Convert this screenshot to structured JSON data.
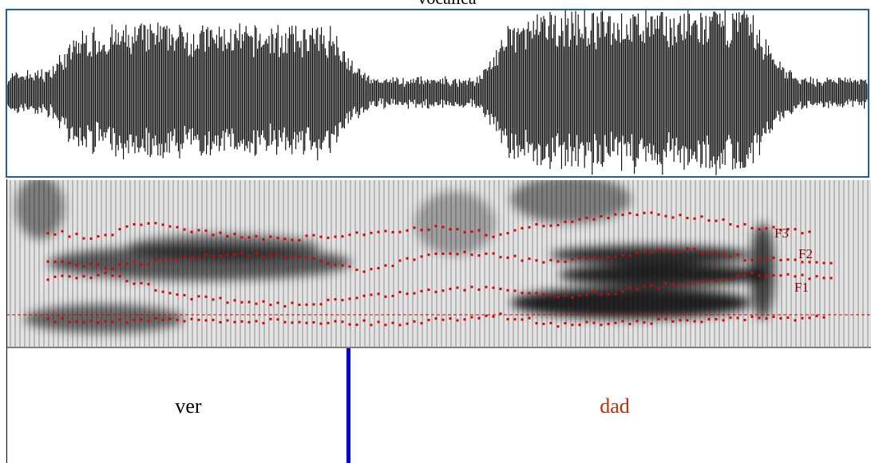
{
  "title": "vocalica",
  "formant_labels": [
    "F3",
    "F2",
    "F1"
  ],
  "tier": {
    "intervals": [
      "ver",
      "dad"
    ]
  }
}
